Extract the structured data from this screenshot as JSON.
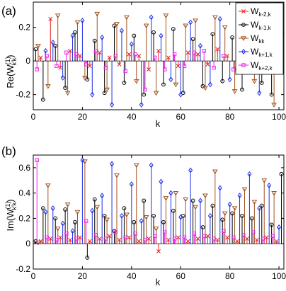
{
  "chart_data": [
    {
      "type": "stem",
      "panel_label": "(a)",
      "ylabel": "Re(W",
      "ylabel_sup": "(1)",
      "ylabel_sub": "k'k",
      "ylabel_close": ")",
      "xlabel": "k",
      "xlim": [
        0,
        102
      ],
      "ylim": [
        -0.29,
        0.35
      ],
      "xticks": [
        "0",
        "20",
        "40",
        "60",
        "80",
        "100"
      ],
      "yticks": [
        "-0.2",
        "0",
        "0.2"
      ],
      "grid": false,
      "legend_position": "top-right",
      "series": [
        {
          "name": "W",
          "sub": "k-2,k",
          "color": "#e8201f",
          "marker": "x",
          "x": [
            3,
            7,
            11,
            15,
            19,
            23,
            27,
            31,
            35,
            39,
            43,
            47,
            51,
            55,
            59,
            63,
            67,
            71,
            75,
            79,
            83,
            87,
            91,
            95,
            99
          ],
          "values": [
            0.02,
            0.25,
            -0.04,
            0.06,
            0.03,
            -0.03,
            0.05,
            0.02,
            -0.02,
            0.04,
            0.03,
            -0.05,
            0.06,
            0.02,
            -0.03,
            0.05,
            0.04,
            -0.02,
            0.07,
            0.03,
            -0.04,
            0.05,
            0.02,
            -0.03,
            0.04
          ]
        },
        {
          "name": "W",
          "sub": "k-1,k",
          "color": "#000000",
          "marker": "circle",
          "x": [
            1,
            4,
            9,
            13,
            17,
            22,
            25,
            29,
            33,
            37,
            41,
            45,
            49,
            53,
            57,
            61,
            65,
            69,
            73,
            77,
            81,
            85,
            89,
            93,
            97,
            101
          ],
          "values": [
            0.07,
            -0.23,
            0.09,
            -0.16,
            0.17,
            -0.11,
            0.12,
            -0.19,
            0.21,
            -0.13,
            0.15,
            -0.2,
            0.17,
            -0.14,
            0.19,
            -0.19,
            0.13,
            -0.15,
            0.16,
            -0.12,
            0.14,
            -0.17,
            0.11,
            -0.13,
            -0.2,
            0.16
          ]
        },
        {
          "name": "W",
          "sub": "kk",
          "color": "#a0521e",
          "marker": "triangle-down",
          "x": [
            2,
            6,
            10,
            14,
            18,
            21,
            26,
            30,
            34,
            38,
            42,
            46,
            50,
            54,
            58,
            62,
            66,
            70,
            74,
            78,
            82,
            86,
            90,
            94,
            98
          ],
          "values": [
            0.09,
            -0.15,
            0.27,
            -0.19,
            0.23,
            -0.1,
            0.28,
            -0.17,
            0.22,
            0.26,
            -0.12,
            0.21,
            -0.19,
            0.27,
            -0.14,
            0.21,
            0.24,
            -0.16,
            0.26,
            0.2,
            -0.18,
            0.22,
            -0.12,
            0.25,
            -0.26
          ]
        },
        {
          "name": "W",
          "sub": "k+1,k",
          "color": "#1c2fe6",
          "marker": "diamond",
          "x": [
            5,
            8,
            12,
            16,
            20,
            24,
            28,
            32,
            36,
            40,
            44,
            48,
            52,
            56,
            60,
            64,
            68,
            72,
            76,
            80,
            84,
            88,
            92,
            96,
            100
          ],
          "values": [
            0.06,
            0.11,
            -0.1,
            0.15,
            0.24,
            -0.2,
            0.14,
            -0.26,
            0.18,
            0.1,
            -0.26,
            0.26,
            0.15,
            -0.11,
            -0.2,
            0.23,
            0.09,
            -0.14,
            0.25,
            -0.11,
            0.24,
            0.14,
            -0.19,
            0.1,
            0.17
          ]
        },
        {
          "name": "W",
          "sub": "k+2,k",
          "color": "#f01ef0",
          "marker": "square",
          "x": [
            1.5,
            5.5,
            9.5,
            13.5,
            17.5,
            21.5,
            25.5,
            29.5,
            33.5,
            37.5,
            41.5,
            45.5,
            49.5,
            53.5,
            57.5,
            61.5,
            65.5,
            69.5,
            73.5,
            77.5,
            81.5,
            85.5,
            89.5,
            93.5,
            97.5
          ],
          "values": [
            -0.05,
            0.03,
            -0.03,
            0.05,
            0.04,
            -0.02,
            0.06,
            -0.04,
            0.03,
            -0.06,
            0.04,
            -0.17,
            0.02,
            -0.05,
            0.04,
            -0.03,
            0.05,
            0.06,
            -0.04,
            0.03,
            -0.05,
            0.04,
            -0.03,
            0.02,
            -0.04
          ]
        }
      ]
    },
    {
      "type": "stem",
      "panel_label": "(b)",
      "ylabel": "Im(W",
      "ylabel_sup": "(1)",
      "ylabel_sub": "k'k",
      "ylabel_close": ")",
      "xlabel": "k",
      "xlim": [
        0,
        102
      ],
      "ylim": [
        -0.2,
        0.7
      ],
      "xticks": [
        "0",
        "20",
        "40",
        "60",
        "80",
        "100"
      ],
      "yticks": [
        "-0.2",
        "0",
        "0.2",
        "0.4",
        "0.6"
      ],
      "grid": false,
      "series": [
        {
          "name": "W",
          "sub": "k-2,k",
          "color": "#e8201f",
          "marker": "x",
          "x": [
            3,
            7,
            11,
            15,
            19,
            23,
            27,
            31,
            35,
            39,
            43,
            47,
            51,
            55,
            59,
            63,
            67,
            71,
            75,
            79,
            83,
            87,
            91,
            95,
            99
          ],
          "values": [
            0.02,
            0.04,
            0.05,
            0.03,
            0.05,
            0.02,
            0.04,
            0.06,
            0.03,
            0.05,
            0.02,
            0.04,
            -0.06,
            0.03,
            0.05,
            0.02,
            0.04,
            0.06,
            0.03,
            0.05,
            0.02,
            0.04,
            0.03,
            0.05,
            0.02
          ]
        },
        {
          "name": "W",
          "sub": "k-1,k",
          "color": "#000000",
          "marker": "circle",
          "x": [
            1,
            4,
            9,
            13,
            17,
            22,
            25,
            29,
            33,
            37,
            41,
            45,
            49,
            53,
            57,
            61,
            65,
            69,
            73,
            77,
            81,
            85,
            89,
            93,
            97,
            101
          ],
          "values": [
            0.02,
            0.28,
            0.2,
            0.27,
            0.17,
            -0.11,
            0.35,
            0.22,
            0.1,
            0.28,
            0.17,
            0.34,
            0.22,
            0.17,
            0.26,
            0.22,
            0.34,
            0.13,
            0.3,
            0.19,
            0.24,
            0.22,
            0.2,
            0.3,
            0.15,
            0.55
          ]
        },
        {
          "name": "W",
          "sub": "kk",
          "color": "#a0521e",
          "marker": "triangle-down",
          "x": [
            2,
            6,
            10,
            14,
            18,
            21,
            26,
            30,
            34,
            38,
            42,
            46,
            50,
            54,
            58,
            62,
            66,
            70,
            74,
            78,
            82,
            86,
            90,
            94,
            98
          ],
          "values": [
            0.01,
            0.46,
            0.12,
            0.31,
            0.25,
            0.65,
            0.29,
            0.19,
            0.54,
            0.23,
            0.62,
            0.21,
            0.12,
            0.36,
            0.4,
            0.35,
            0.29,
            0.38,
            0.57,
            0.24,
            0.28,
            0.43,
            0.33,
            0.5,
            0.4
          ]
        },
        {
          "name": "W",
          "sub": "k+1,k",
          "color": "#1c2fe6",
          "marker": "diamond",
          "x": [
            5,
            8,
            12,
            16,
            20,
            24,
            28,
            32,
            36,
            40,
            44,
            48,
            52,
            56,
            60,
            64,
            68,
            72,
            76,
            80,
            84,
            88,
            92,
            96,
            100
          ],
          "values": [
            0.25,
            0.28,
            0.16,
            0.1,
            0.66,
            0.26,
            0.38,
            0.63,
            0.22,
            0.47,
            0.18,
            0.62,
            0.49,
            0.4,
            0.21,
            0.58,
            0.34,
            0.22,
            0.44,
            0.31,
            0.38,
            0.55,
            0.28,
            0.46,
            0.13
          ]
        },
        {
          "name": "W",
          "sub": "k+2,k",
          "color": "#f01ef0",
          "marker": "square",
          "x": [
            1.5,
            5.5,
            9.5,
            13.5,
            17.5,
            21.5,
            25.5,
            29.5,
            33.5,
            37.5,
            41.5,
            45.5,
            49.5,
            53.5,
            57.5,
            61.5,
            65.5,
            69.5,
            73.5,
            77.5,
            81.5,
            85.5,
            89.5,
            93.5,
            97.5
          ],
          "values": [
            0.66,
            0.05,
            0.03,
            0.08,
            0.04,
            0.18,
            0.07,
            0.04,
            0.09,
            0.05,
            0.08,
            0.03,
            0.06,
            0.09,
            0.04,
            0.05,
            0.08,
            0.06,
            0.04,
            0.1,
            0.05,
            0.07,
            0.09,
            0.04,
            0.06
          ]
        }
      ]
    }
  ]
}
